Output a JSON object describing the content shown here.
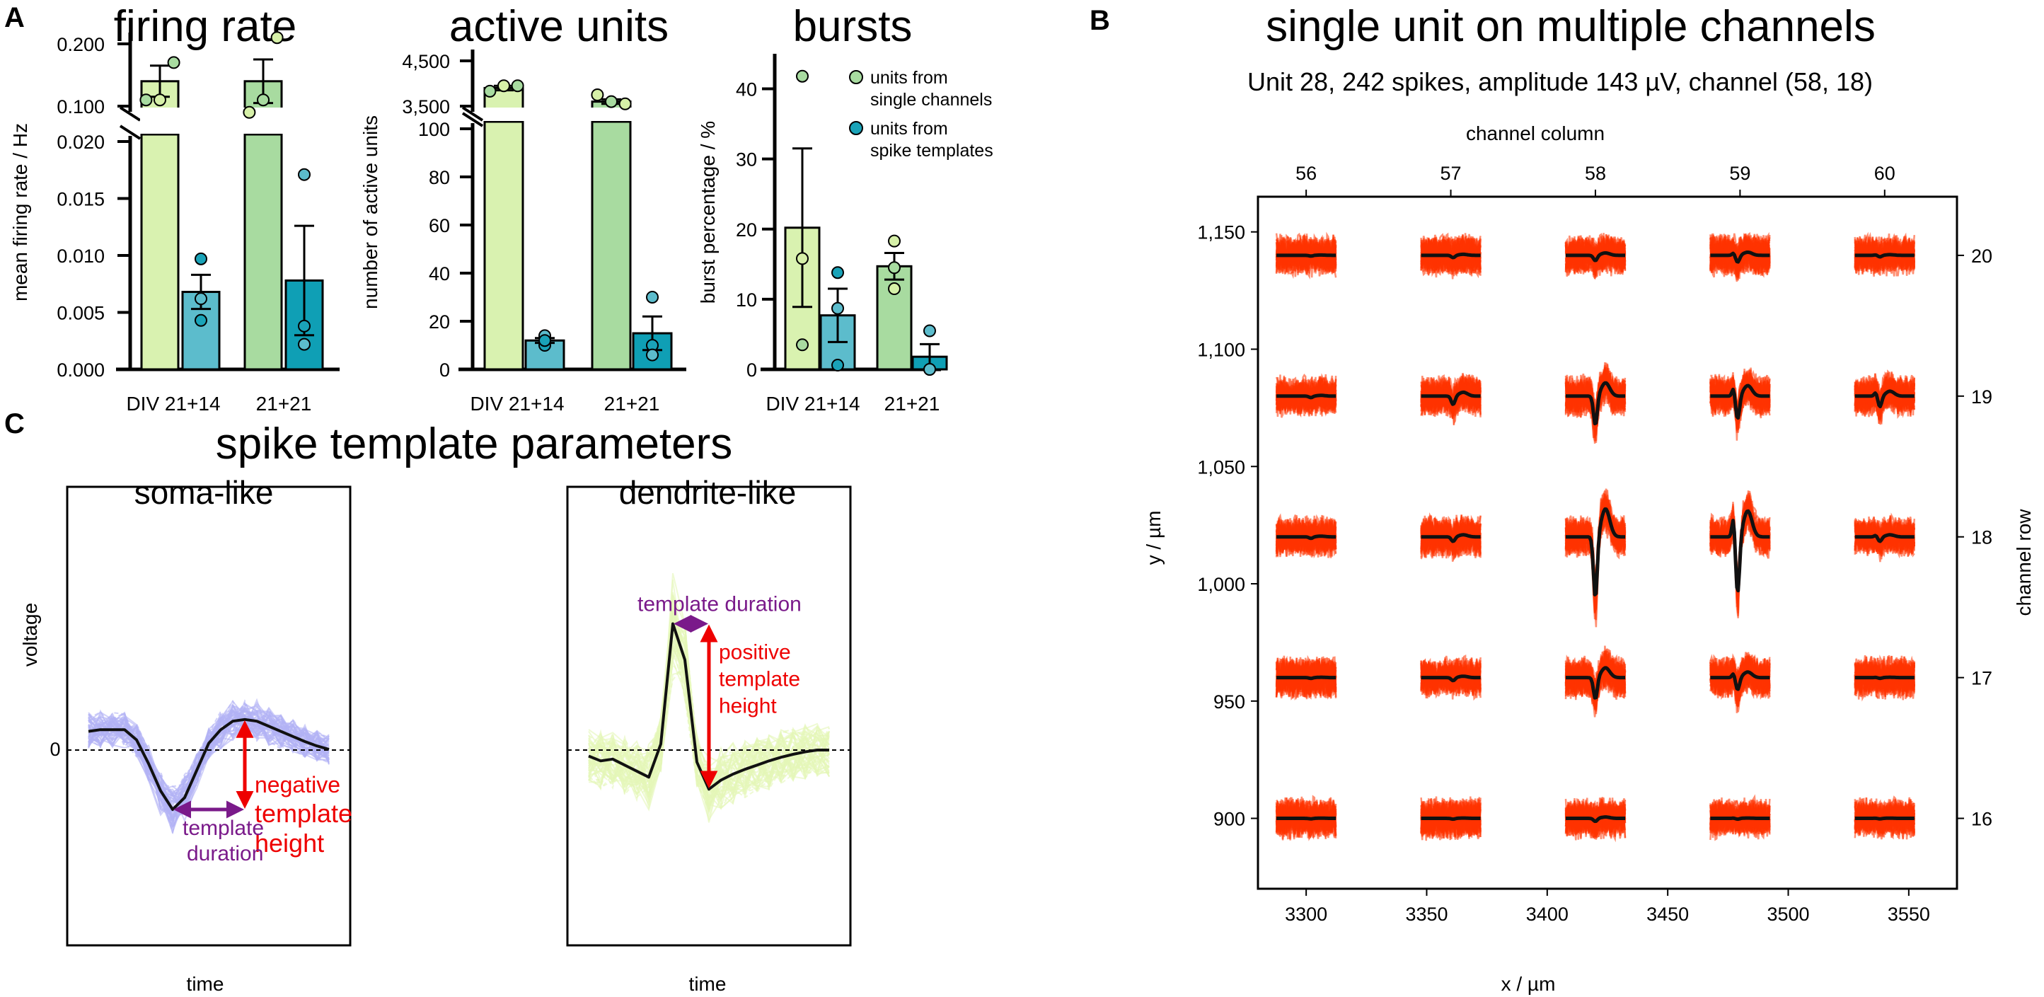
{
  "panel_labels": {
    "a": "A",
    "b": "B",
    "c": "C"
  },
  "colors": {
    "single_div14": "#d9f2b0",
    "single_div21": "#a8dba0",
    "template_div14": "#5cbccc",
    "template_div21": "#0f9fb5",
    "dot_single": "#d6f0a8",
    "dot_single_alt": "#a8dba0",
    "dot_template": "#1aa3b8",
    "trace_red": "#ff3300",
    "soma_traces": "#b3b3f5",
    "dendrite_traces": "#e4f7b8",
    "annotation_red": "#ee0000",
    "annotation_purple": "#7a1a8a"
  },
  "legend": {
    "entries": [
      {
        "line1": "units from",
        "line2": "single channels"
      },
      {
        "line1": "units from",
        "line2": "spike templates"
      }
    ]
  },
  "chart_data": [
    {
      "type": "bar",
      "title": "firing rate",
      "ylabel": "mean firing rate / Hz",
      "categories": [
        "DIV 21+14",
        "21+21"
      ],
      "broken_axis": true,
      "lower_ylim": [
        0,
        0.02
      ],
      "upper_ylim": [
        0.1,
        0.2
      ],
      "lower_ticks": [
        "0.000",
        "0.005",
        "0.010",
        "0.015",
        "0.020"
      ],
      "upper_ticks": [
        "0.100",
        "0.200"
      ],
      "series": [
        {
          "name": "units from single channels",
          "values": [
            0.14,
            0.14
          ],
          "sem": [
            0.025,
            0.035
          ],
          "points": [
            [
              0.11,
              0.11,
              0.17
            ],
            [
              0.09,
              0.11,
              0.21
            ]
          ]
        },
        {
          "name": "units from spike templates",
          "values": [
            0.0068,
            0.0078
          ],
          "sem": [
            0.0015,
            0.0048
          ],
          "points": [
            [
              0.0097,
              0.0062,
              0.0043
            ],
            [
              0.0171,
              0.0038,
              0.0022
            ]
          ]
        }
      ]
    },
    {
      "type": "bar",
      "title": "active units",
      "ylabel": "number of active units",
      "categories": [
        "DIV 21+14",
        "21+21"
      ],
      "broken_axis": true,
      "lower_ylim": [
        0,
        100
      ],
      "upper_ylim": [
        3500,
        4500
      ],
      "lower_ticks": [
        "0",
        "20",
        "40",
        "60",
        "80",
        "100"
      ],
      "upper_ticks": [
        "3,500",
        "4,500"
      ],
      "series": [
        {
          "name": "units from single channels",
          "values": [
            3900,
            3600
          ],
          "sem": [
            50,
            50
          ],
          "points": [
            [
              3830,
              3950,
              3950
            ],
            [
              3750,
              3600,
              3550
            ]
          ]
        },
        {
          "name": "units from spike templates",
          "values": [
            12,
            15
          ],
          "sem": [
            1,
            7
          ],
          "points": [
            [
              10,
              14,
              12
            ],
            [
              30,
              10,
              6
            ]
          ]
        }
      ]
    },
    {
      "type": "bar",
      "title": "bursts",
      "ylabel": "burst percentage / %",
      "categories": [
        "DIV 21+14",
        "21+21"
      ],
      "ylim": [
        0,
        45
      ],
      "ticks": [
        "0",
        "10",
        "20",
        "30",
        "40"
      ],
      "series": [
        {
          "name": "units from single channels",
          "values": [
            20.2,
            14.7
          ],
          "sem": [
            11.3,
            1.9
          ],
          "points": [
            [
              41.8,
              15.8,
              3.5
            ],
            [
              18.3,
              14.5,
              11.5
            ]
          ]
        },
        {
          "name": "units from spike templates",
          "values": [
            7.7,
            1.8
          ],
          "sem": [
            3.8,
            1.8
          ],
          "points": [
            [
              13.8,
              8.7,
              0.6
            ],
            [
              5.5,
              0.0,
              0.0
            ]
          ]
        }
      ]
    },
    {
      "type": "line",
      "title": "single unit on multiple channels",
      "subtitle": "Unit 28, 242 spikes, amplitude 143 µV, channel (58, 18)",
      "xlabel": "x / µm",
      "ylabel": "y / µm",
      "top_xlabel": "channel column",
      "right_ylabel": "channel row",
      "x_ticks": [
        "3300",
        "3350",
        "3400",
        "3450",
        "3500",
        "3550"
      ],
      "y_ticks": [
        "900",
        "950",
        "1,000",
        "1,050",
        "1,100",
        "1,150"
      ],
      "top_ticks": [
        "56",
        "57",
        "58",
        "59",
        "60"
      ],
      "right_ticks": [
        "16",
        "17",
        "18",
        "19",
        "20"
      ],
      "xlim": [
        3280,
        3570
      ],
      "ylim": [
        870,
        1165
      ],
      "columns_x": [
        3300,
        3360,
        3420,
        3480,
        3540
      ],
      "rows_y": [
        900,
        960,
        1020,
        1080,
        1140
      ],
      "note": "each cell: overlaid spike traces (red) and mean template (black); amplitude of deflection per cell (relative units)",
      "cell_amplitudes": [
        [
          0.05,
          0.15,
          0.35,
          0.45,
          0.1
        ],
        [
          0.1,
          0.55,
          1.9,
          1.5,
          0.7
        ],
        [
          0.1,
          0.3,
          4.0,
          3.7,
          0.3
        ],
        [
          0.05,
          0.2,
          1.4,
          0.8,
          0.05
        ],
        [
          0.03,
          0.05,
          0.2,
          0.05,
          0.03
        ]
      ]
    },
    {
      "type": "line",
      "title": "spike template parameters",
      "subtitle": "soma-like",
      "xlabel": "time",
      "ylabel": "voltage",
      "y_ticks": [
        "0"
      ],
      "template": [
        0.55,
        0.6,
        0.6,
        0.6,
        0.3,
        -0.4,
        -1.2,
        -1.75,
        -1.4,
        -0.6,
        0.2,
        0.6,
        0.85,
        0.9,
        0.85,
        0.7,
        0.55,
        0.4,
        0.25,
        0.12,
        0.02
      ],
      "annotations": [
        "negative template height",
        "template duration"
      ]
    },
    {
      "type": "line",
      "subtitle": "dendrite-like",
      "xlabel": "time",
      "template": [
        -0.1,
        -0.18,
        -0.15,
        -0.25,
        -0.35,
        -0.45,
        0.1,
        2.1,
        1.5,
        -0.2,
        -0.65,
        -0.5,
        -0.4,
        -0.32,
        -0.25,
        -0.18,
        -0.12,
        -0.07,
        -0.03,
        0.0,
        0.0
      ],
      "annotations": [
        "positive template height",
        "template duration"
      ]
    }
  ],
  "panel_c": {
    "title": "spike template parameters",
    "soma": {
      "title": "soma-like",
      "neg_label_lines": [
        "negative",
        "template",
        "height"
      ],
      "dur_label_lines": [
        "template",
        "duration"
      ]
    },
    "dendrite": {
      "title": "dendrite-like",
      "pos_label_lines": [
        "positive",
        "template",
        "height"
      ],
      "dur_label": "template duration"
    }
  }
}
